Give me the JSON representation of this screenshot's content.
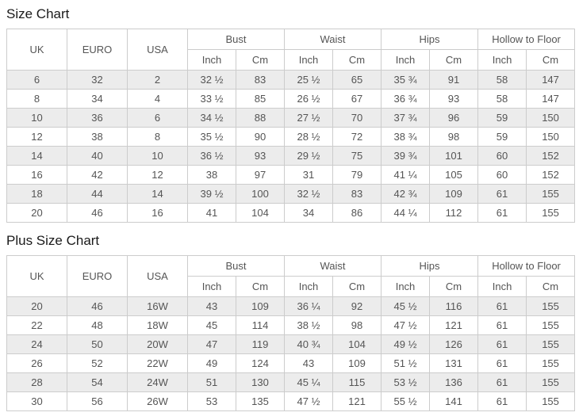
{
  "colors": {
    "row_alt_background": "#ececec",
    "row_background": "#ffffff",
    "border": "#cccccc",
    "cell_text": "#555555",
    "title_text": "#1a1a1a"
  },
  "tables": [
    {
      "title": "Size Chart",
      "simple_columns": [
        "UK",
        "EURO",
        "USA"
      ],
      "group_columns": [
        {
          "label": "Bust",
          "sub": [
            "Inch",
            "Cm"
          ]
        },
        {
          "label": "Waist",
          "sub": [
            "Inch",
            "Cm"
          ]
        },
        {
          "label": "Hips",
          "sub": [
            "Inch",
            "Cm"
          ]
        },
        {
          "label": "Hollow to Floor",
          "sub": [
            "Inch",
            "Cm"
          ]
        }
      ],
      "rows": [
        [
          "6",
          "32",
          "2",
          "32 ½",
          "83",
          "25 ½",
          "65",
          "35 ¾",
          "91",
          "58",
          "147"
        ],
        [
          "8",
          "34",
          "4",
          "33 ½",
          "85",
          "26 ½",
          "67",
          "36 ¾",
          "93",
          "58",
          "147"
        ],
        [
          "10",
          "36",
          "6",
          "34 ½",
          "88",
          "27 ½",
          "70",
          "37 ¾",
          "96",
          "59",
          "150"
        ],
        [
          "12",
          "38",
          "8",
          "35 ½",
          "90",
          "28 ½",
          "72",
          "38 ¾",
          "98",
          "59",
          "150"
        ],
        [
          "14",
          "40",
          "10",
          "36 ½",
          "93",
          "29 ½",
          "75",
          "39 ¾",
          "101",
          "60",
          "152"
        ],
        [
          "16",
          "42",
          "12",
          "38",
          "97",
          "31",
          "79",
          "41 ¼",
          "105",
          "60",
          "152"
        ],
        [
          "18",
          "44",
          "14",
          "39 ½",
          "100",
          "32 ½",
          "83",
          "42 ¾",
          "109",
          "61",
          "155"
        ],
        [
          "20",
          "46",
          "16",
          "41",
          "104",
          "34",
          "86",
          "44 ¼",
          "112",
          "61",
          "155"
        ]
      ]
    },
    {
      "title": "Plus Size Chart",
      "simple_columns": [
        "UK",
        "EURO",
        "USA"
      ],
      "group_columns": [
        {
          "label": "Bust",
          "sub": [
            "Inch",
            "Cm"
          ]
        },
        {
          "label": "Waist",
          "sub": [
            "Inch",
            "Cm"
          ]
        },
        {
          "label": "Hips",
          "sub": [
            "Inch",
            "Cm"
          ]
        },
        {
          "label": "Hollow to Floor",
          "sub": [
            "Inch",
            "Cm"
          ]
        }
      ],
      "rows": [
        [
          "20",
          "46",
          "16W",
          "43",
          "109",
          "36 ¼",
          "92",
          "45 ½",
          "116",
          "61",
          "155"
        ],
        [
          "22",
          "48",
          "18W",
          "45",
          "114",
          "38 ½",
          "98",
          "47 ½",
          "121",
          "61",
          "155"
        ],
        [
          "24",
          "50",
          "20W",
          "47",
          "119",
          "40 ¾",
          "104",
          "49 ½",
          "126",
          "61",
          "155"
        ],
        [
          "26",
          "52",
          "22W",
          "49",
          "124",
          "43",
          "109",
          "51 ½",
          "131",
          "61",
          "155"
        ],
        [
          "28",
          "54",
          "24W",
          "51",
          "130",
          "45 ¼",
          "115",
          "53 ½",
          "136",
          "61",
          "155"
        ],
        [
          "30",
          "56",
          "26W",
          "53",
          "135",
          "47 ½",
          "121",
          "55 ½",
          "141",
          "61",
          "155"
        ]
      ]
    }
  ]
}
